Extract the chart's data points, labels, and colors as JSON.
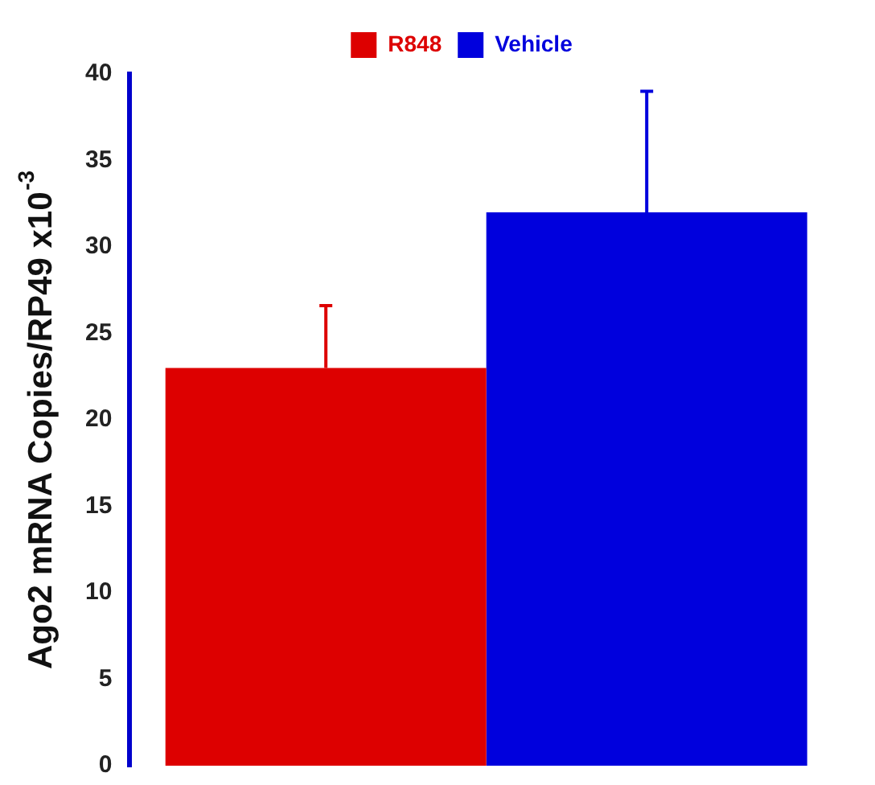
{
  "chart_data": {
    "type": "bar",
    "ylabel": "Ago2 mRNA Copies/RP49 x10$^{-3}$",
    "categories": [
      null
    ],
    "series": [
      {
        "name": "R848",
        "color": "#dd0000",
        "values": [
          23
        ],
        "errors": [
          [
            23,
            26.6
          ]
        ]
      },
      {
        "name": "Vehicle",
        "color": "#0000dd",
        "values": [
          32
        ],
        "errors": [
          [
            32,
            39
          ]
        ]
      }
    ],
    "ylim": [
      0,
      40
    ],
    "yticks": [
      0,
      5,
      10,
      15,
      20,
      25,
      30,
      35,
      40
    ],
    "legend": "top",
    "grid": false
  }
}
